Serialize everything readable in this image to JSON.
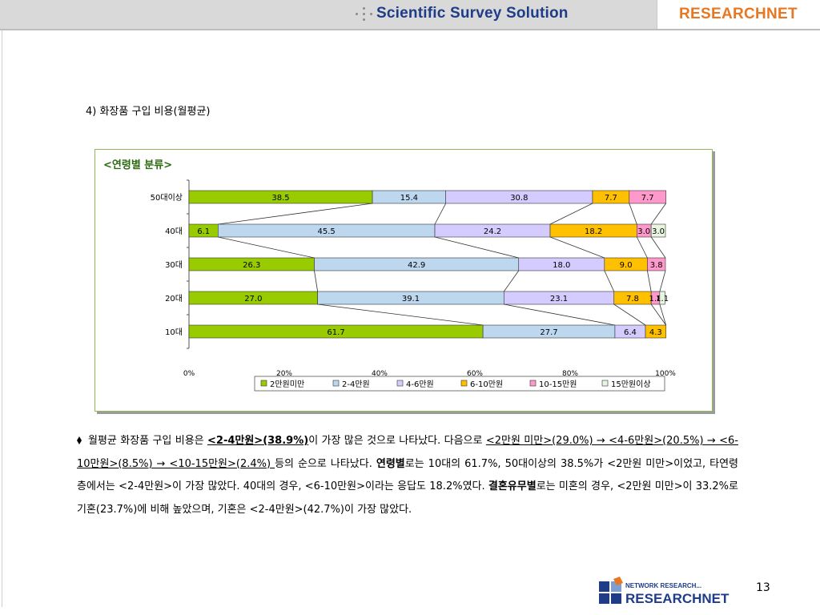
{
  "header": {
    "tagline": "Scientific Survey Solution",
    "brand": "RESEARCHNET"
  },
  "section_title": "4) 화장품 구입 비용(월평균)",
  "chart_data": {
    "type": "bar",
    "orientation": "horizontal",
    "stacked": "percent",
    "title": "<연령별 분류>",
    "categories": [
      "50대이상",
      "40대",
      "30대",
      "20대",
      "10대"
    ],
    "series": [
      {
        "name": "2만원미만",
        "color": "#99cc00",
        "values": [
          38.5,
          6.1,
          26.3,
          27.0,
          61.7
        ],
        "labels": [
          "38.5",
          "6.1",
          "26.3",
          "27.0",
          "61.7"
        ]
      },
      {
        "name": "2-4만원",
        "color": "#bdd7ee",
        "values": [
          15.4,
          45.5,
          42.9,
          39.1,
          27.7
        ],
        "labels": [
          "15.4",
          "45.5",
          "42.9",
          "39.1",
          "27.7"
        ]
      },
      {
        "name": "4-6만원",
        "color": "#d4ccff",
        "values": [
          30.8,
          24.2,
          18.0,
          23.1,
          6.4
        ],
        "labels": [
          "30.8",
          "24.2",
          "18.0",
          "23.1",
          "6.4"
        ]
      },
      {
        "name": "6-10만원",
        "color": "#ffc000",
        "values": [
          7.7,
          18.2,
          9.0,
          7.8,
          4.3
        ],
        "labels": [
          "7.7",
          "18.2",
          "9.0",
          "7.8",
          "4.3"
        ]
      },
      {
        "name": "10-15만원",
        "color": "#ff99cc",
        "values": [
          7.7,
          3.0,
          3.8,
          1.8,
          0.0
        ],
        "labels": [
          "7.7",
          "3.0",
          "3.8",
          "1.8",
          ""
        ]
      },
      {
        "name": "15만원이상",
        "color": "#e8f5e0",
        "values": [
          0.0,
          3.0,
          0.0,
          1.1,
          0.0
        ],
        "labels": [
          "",
          "3.0",
          "",
          "1.1",
          ""
        ]
      }
    ],
    "xlim": [
      0,
      100
    ],
    "x_ticks": [
      "0%",
      "20%",
      "40%",
      "60%",
      "80%",
      "100%"
    ],
    "legend": "bottom",
    "series_lines": true,
    "grid": false
  },
  "paragraph": {
    "s1": "월평균 화장품 구입 비용은 ",
    "s2": "<2-4만원>(38.9%)",
    "s3": "이 가장 많은 것으로 나타났다. 다음으로 ",
    "s4": "<2만원 미만>(29.0%) → <4-6만원>(20.5%) → <6-10만원>(8.5%) → <10-15만원>(2.4%) ",
    "s5": "등의 순으로 나타났다. ",
    "s6": "연령별",
    "s7": "로는 10대의 61.7%, 50대이상의 38.5%가 <2만원 미만>이었고, 타연령층에서는 <2-4만원>이 가장 많았다. 40대의 경우, <6-10만원>이라는 응답도 18.2%였다. ",
    "s8": "결혼유무별",
    "s9": "로는 미혼의 경우, <2만원 미만>이 33.2%로 기혼(23.7%)에 비해 높았으며, 기혼은 <2-4만원>(42.7%)이 가장 많았다."
  },
  "footer": {
    "logo_top": "NETWORK RESEARCH...",
    "logo_bottom": "RESEARCHNET",
    "page_number": "13"
  }
}
